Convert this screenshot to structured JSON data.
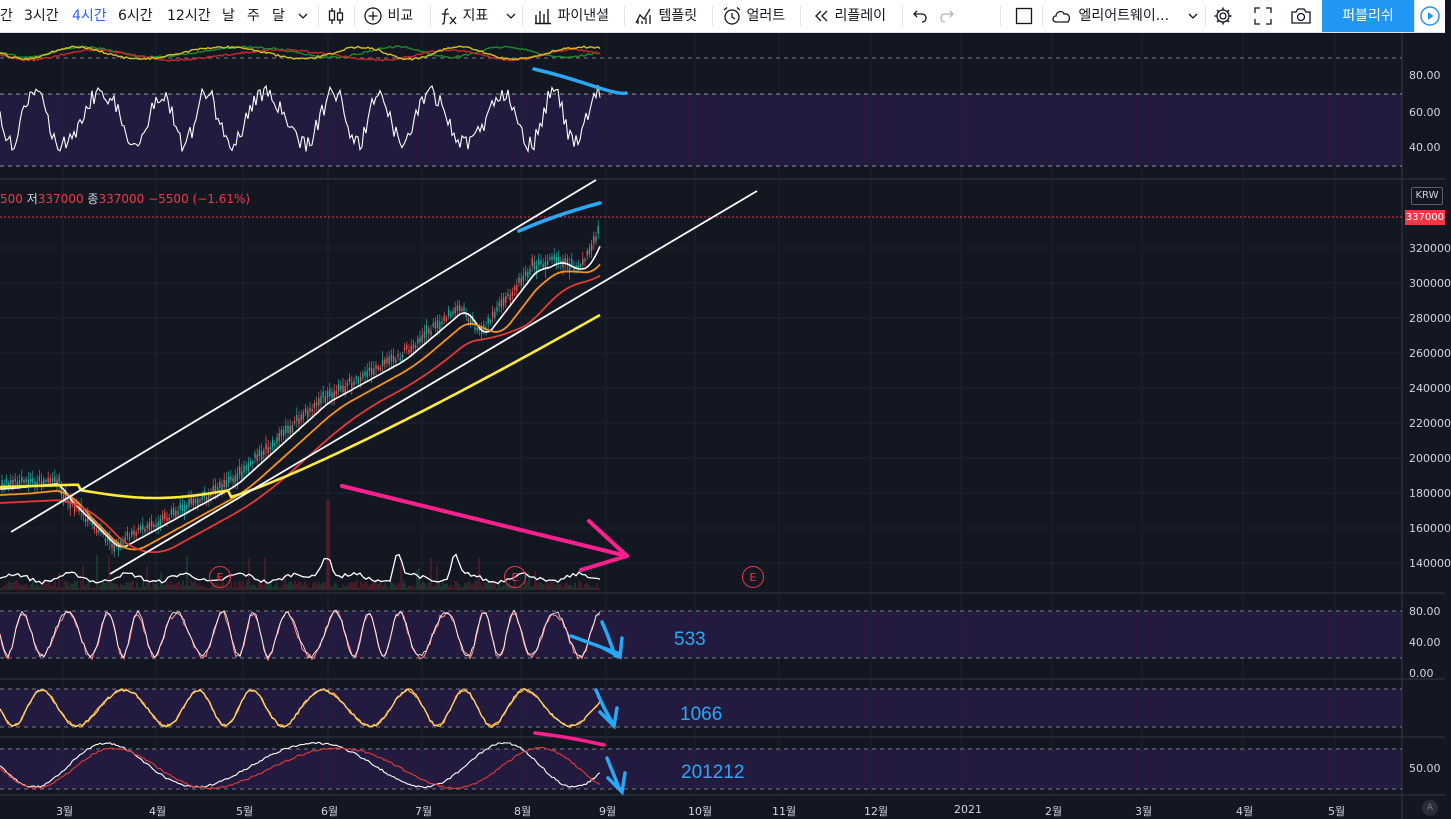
{
  "toolbar": {
    "intervals": [
      "간",
      "3시간",
      "4시간",
      "6시간",
      "12시간",
      "날",
      "주",
      "달"
    ],
    "active_interval": "4시간",
    "compare_label": "비교",
    "indicators_label": "지표",
    "financials_label": "파이낸셜",
    "templates_label": "템플릿",
    "alerts_label": "얼러트",
    "replay_label": "리플레이",
    "layout_name": "엘리어트웨이...",
    "publish_label": "퍼블리쉬"
  },
  "legend": {
    "open_partial": "500",
    "low_label": "저",
    "low_value": "337000",
    "close_label": "종",
    "close_value": "337000",
    "change": "−5500 (−1.61%)"
  },
  "price_axis": {
    "currency": "KRW",
    "last_price": "337000",
    "ticks": [
      "320000",
      "300000",
      "280000",
      "260000",
      "240000",
      "220000",
      "200000",
      "180000",
      "160000",
      "140000"
    ]
  },
  "rsi_axis": {
    "ticks": [
      "80.00",
      "60.00",
      "40.00"
    ]
  },
  "stoch1_axis": {
    "ticks": [
      "80.00",
      "40.00",
      "0.00"
    ]
  },
  "stoch3_axis": {
    "ticks": [
      "50.00"
    ]
  },
  "time_axis": {
    "labels": [
      "3월",
      "4월",
      "5월",
      "6월",
      "7월",
      "8월",
      "9월",
      "10월",
      "11월",
      "12월",
      "2021",
      "2월",
      "3월",
      "4월",
      "5월"
    ]
  },
  "earnings_marker": "E",
  "annotations": {
    "stoch_fast": "533",
    "stoch_mid": "1066",
    "stoch_slow": "201212"
  },
  "colors": {
    "background": "#131722",
    "toolbar_accent": "#2962ff",
    "publish_button": "#2196f3",
    "price_tag": "#f23645",
    "ma_white": "#ffffff",
    "ma_orange": "#f7931a",
    "ma_red": "#e53935",
    "ma_yellow": "#ffeb3b",
    "annotation_blue": "#29a9f5",
    "annotation_pink": "#ff1f8e",
    "pane_band": "#2a1d4a"
  }
}
